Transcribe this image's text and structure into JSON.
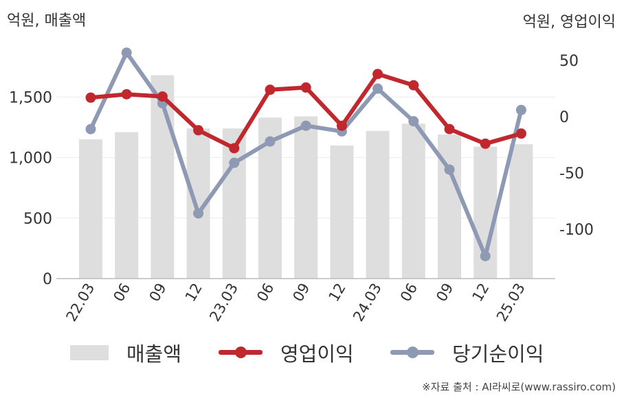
{
  "header": {
    "left_unit": "억원, 매출액",
    "right_unit": "억원, 영업이익"
  },
  "chart_data": {
    "type": "bar+line",
    "categories": [
      "22.03",
      "06",
      "09",
      "12",
      "23.03",
      "06",
      "09",
      "12",
      "24.03",
      "06",
      "09",
      "12",
      "25.03"
    ],
    "series": [
      {
        "name": "매출액",
        "type": "bar",
        "axis": "left",
        "color": "#dedede",
        "values": [
          1150,
          1210,
          1680,
          1240,
          1240,
          1330,
          1340,
          1100,
          1220,
          1280,
          1190,
          1090,
          1110
        ]
      },
      {
        "name": "영업이익",
        "type": "line",
        "axis": "right",
        "color": "#c0282d",
        "values": [
          17,
          20,
          18,
          -12,
          -28,
          24,
          26,
          -8,
          38,
          28,
          -11,
          -24,
          -15
        ]
      },
      {
        "name": "당기순이익",
        "type": "line",
        "axis": "right",
        "color": "#8e9ab4",
        "values": [
          -11,
          57,
          12,
          -86,
          -41,
          -22,
          -8,
          -13,
          25,
          -4,
          -47,
          -124,
          6
        ]
      }
    ],
    "left_axis": {
      "ylim": [
        0,
        1950
      ],
      "ticks": [
        0,
        500,
        1000,
        1500
      ],
      "tick_labels": [
        "0",
        "500",
        "1,000",
        "1,500"
      ]
    },
    "right_axis": {
      "ylim": [
        -144,
        66
      ],
      "ticks": [
        50,
        0,
        -50,
        -100
      ],
      "tick_labels": [
        "50",
        "0",
        "-50",
        "-100"
      ]
    },
    "grid": true,
    "legend_position": "bottom"
  },
  "legend": {
    "bar_label": "매출액",
    "line1_label": "영업이익",
    "line2_label": "당기순이익"
  },
  "footer": {
    "source": "※자료 출처 : AI라씨로(www.rassiro.com)"
  }
}
